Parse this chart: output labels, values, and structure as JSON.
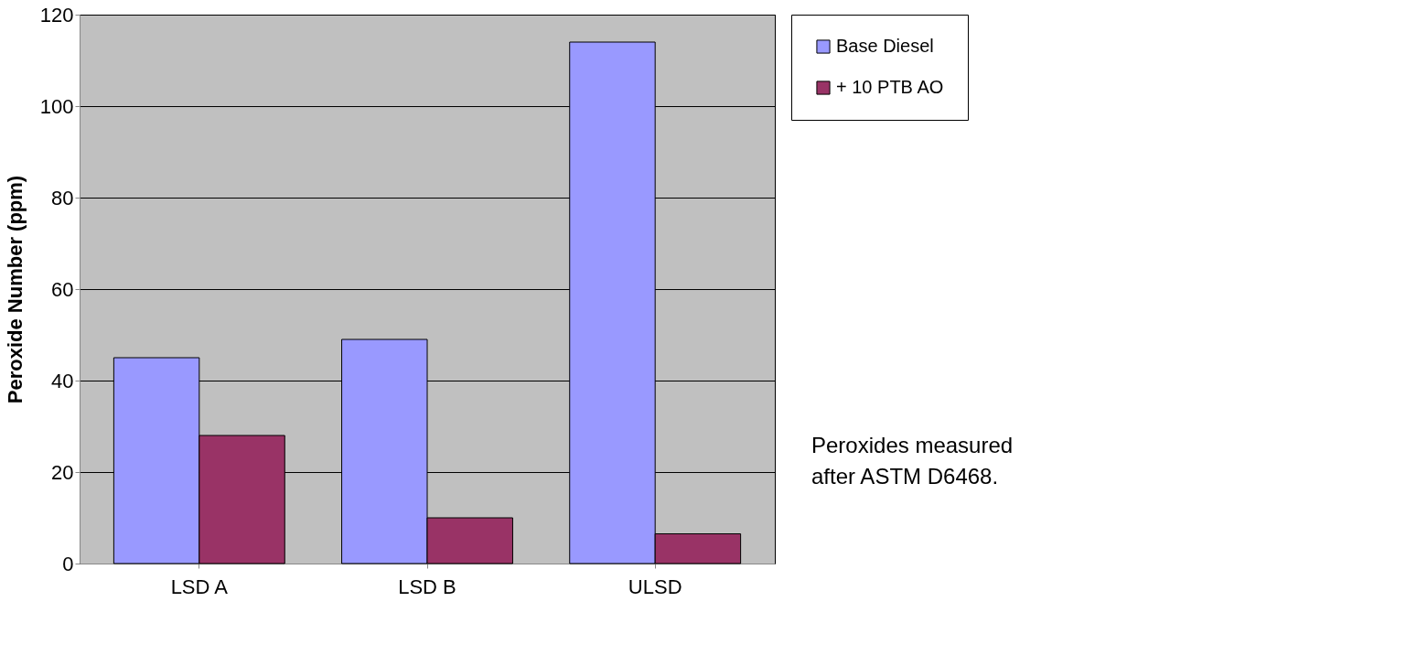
{
  "chart_data": {
    "type": "bar",
    "ylabel": "Peroxide Number (ppm)",
    "categories": [
      "LSD A",
      "LSD B",
      "ULSD"
    ],
    "series": [
      {
        "name": "Base Diesel",
        "color": "#9999ff",
        "values": [
          45,
          49,
          114
        ]
      },
      {
        "name": "+ 10 PTB AO",
        "color": "#993366",
        "values": [
          28,
          10,
          6.5
        ]
      }
    ],
    "ylim": [
      0,
      120
    ],
    "yticks": [
      0,
      20,
      40,
      60,
      80,
      100,
      120
    ],
    "grid": "y",
    "legend": "right",
    "annotations": [
      "Peroxides measured after ASTM D6468."
    ]
  }
}
